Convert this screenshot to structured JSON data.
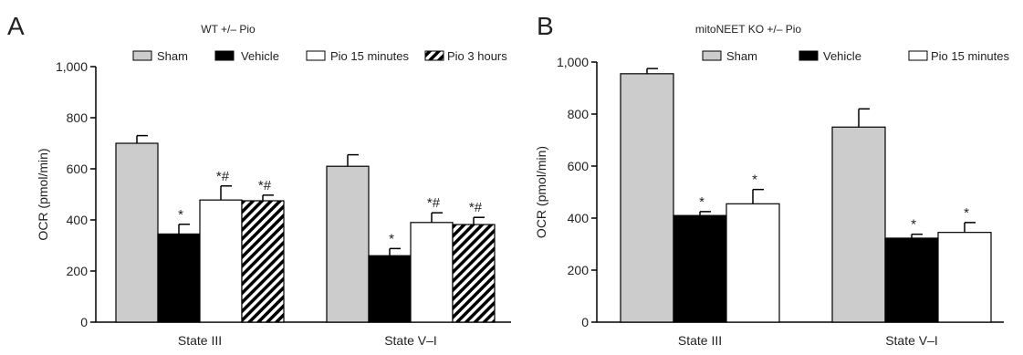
{
  "chart_data": [
    {
      "panel": "A",
      "type": "bar",
      "title": "WT +/– Pio",
      "xlabel": "",
      "ylabel": "OCR (pmol/min)",
      "ylim": [
        0,
        1000
      ],
      "yticks": [
        0,
        200,
        400,
        600,
        800,
        1000
      ],
      "ytick_labels": [
        "0",
        "200",
        "400",
        "600",
        "800",
        "1,000"
      ],
      "categories": [
        "State III",
        "State V–I"
      ],
      "legend_placement": "top",
      "grid": false,
      "series": [
        {
          "name": "Sham",
          "fill": "#cccccc",
          "pattern": "solid",
          "values": [
            700,
            610
          ],
          "errors": [
            30,
            45
          ],
          "annotations": [
            "",
            ""
          ]
        },
        {
          "name": "Vehicle",
          "fill": "#000000",
          "pattern": "solid",
          "values": [
            345,
            260
          ],
          "errors": [
            38,
            28
          ],
          "annotations": [
            "*",
            "*"
          ]
        },
        {
          "name": "Pio 15 minutes",
          "fill": "#ffffff",
          "pattern": "solid",
          "values": [
            478,
            390
          ],
          "errors": [
            55,
            38
          ],
          "annotations": [
            "*#",
            "*#"
          ]
        },
        {
          "name": "Pio 3 hours",
          "fill": "#ffffff",
          "pattern": "hatch",
          "values": [
            475,
            382
          ],
          "errors": [
            22,
            28
          ],
          "annotations": [
            "*#",
            "*#"
          ]
        }
      ]
    },
    {
      "panel": "B",
      "type": "bar",
      "title": "mitoNEET KO +/– Pio",
      "xlabel": "",
      "ylabel": "OCR (pmol/min)",
      "ylim": [
        0,
        1000
      ],
      "yticks": [
        0,
        200,
        400,
        600,
        800,
        1000
      ],
      "ytick_labels": [
        "0",
        "200",
        "400",
        "600",
        "800",
        "1,000"
      ],
      "categories": [
        "State III",
        "State V–I"
      ],
      "legend_placement": "top",
      "grid": false,
      "series": [
        {
          "name": "Sham",
          "fill": "#cccccc",
          "pattern": "solid",
          "values": [
            955,
            750
          ],
          "errors": [
            20,
            70
          ],
          "annotations": [
            "",
            ""
          ]
        },
        {
          "name": "Vehicle",
          "fill": "#000000",
          "pattern": "solid",
          "values": [
            410,
            323
          ],
          "errors": [
            15,
            15
          ],
          "annotations": [
            "*",
            "*"
          ]
        },
        {
          "name": "Pio 15 minutes",
          "fill": "#ffffff",
          "pattern": "solid",
          "values": [
            455,
            345
          ],
          "errors": [
            55,
            38
          ],
          "annotations": [
            "*",
            "*"
          ]
        }
      ]
    }
  ]
}
